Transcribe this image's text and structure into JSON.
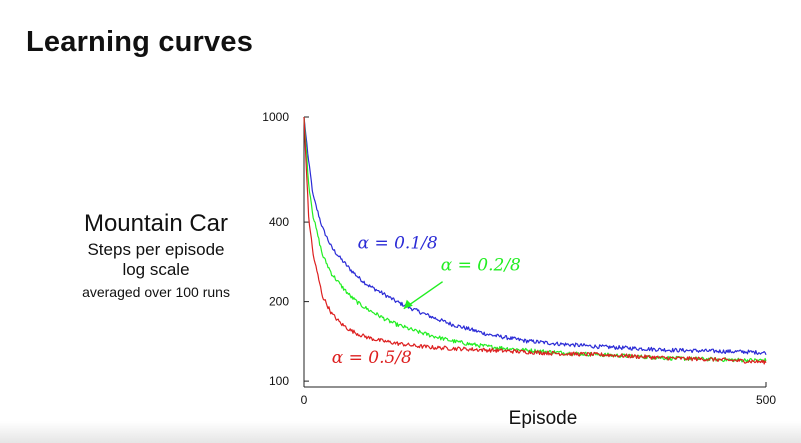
{
  "slide": {
    "title": "Learning curves"
  },
  "caption": {
    "line1": "Mountain Car",
    "line2": "Steps per episode",
    "line3": "log scale",
    "line4": "averaged over 100 runs"
  },
  "chart_data": {
    "type": "line",
    "title": "",
    "xlabel": "Episode",
    "ylabel": "",
    "xlim": [
      0,
      500
    ],
    "ylim": [
      95,
      1000
    ],
    "y_scale": "log",
    "x_ticks": [
      0,
      500
    ],
    "y_ticks": [
      100,
      200,
      400,
      1000
    ],
    "grid": false,
    "legend": "inline labels",
    "series": [
      {
        "name": "α = 0.1/8",
        "color": "#2b2bd6",
        "x": [
          0,
          5,
          10,
          20,
          30,
          40,
          50,
          60,
          70,
          80,
          90,
          100,
          120,
          140,
          160,
          180,
          200,
          240,
          280,
          320,
          360,
          400,
          440,
          480,
          500
        ],
        "values": [
          1000,
          680,
          500,
          380,
          320,
          290,
          265,
          245,
          230,
          220,
          210,
          200,
          186,
          174,
          164,
          157,
          150,
          142,
          138,
          135,
          133,
          131,
          130,
          129,
          128
        ]
      },
      {
        "name": "α = 0.2/8",
        "color": "#22ee22",
        "x": [
          0,
          5,
          10,
          20,
          30,
          40,
          50,
          60,
          70,
          80,
          90,
          100,
          120,
          140,
          160,
          180,
          200,
          240,
          280,
          320,
          360,
          400,
          440,
          480,
          500
        ],
        "values": [
          1000,
          560,
          420,
          300,
          255,
          230,
          210,
          196,
          186,
          178,
          170,
          164,
          155,
          148,
          142,
          138,
          135,
          131,
          128,
          126,
          124,
          122,
          121,
          120,
          120
        ]
      },
      {
        "name": "α = 0.5/8",
        "color": "#dd1f1f",
        "x": [
          0,
          5,
          10,
          20,
          30,
          40,
          50,
          60,
          70,
          80,
          90,
          100,
          120,
          140,
          160,
          180,
          200,
          240,
          280,
          320,
          360,
          400,
          440,
          480,
          500
        ],
        "values": [
          1000,
          420,
          300,
          210,
          180,
          165,
          156,
          150,
          146,
          143,
          141,
          139,
          136,
          134,
          133,
          132,
          131,
          129,
          127,
          126,
          124,
          122,
          121,
          119,
          118
        ]
      }
    ]
  }
}
